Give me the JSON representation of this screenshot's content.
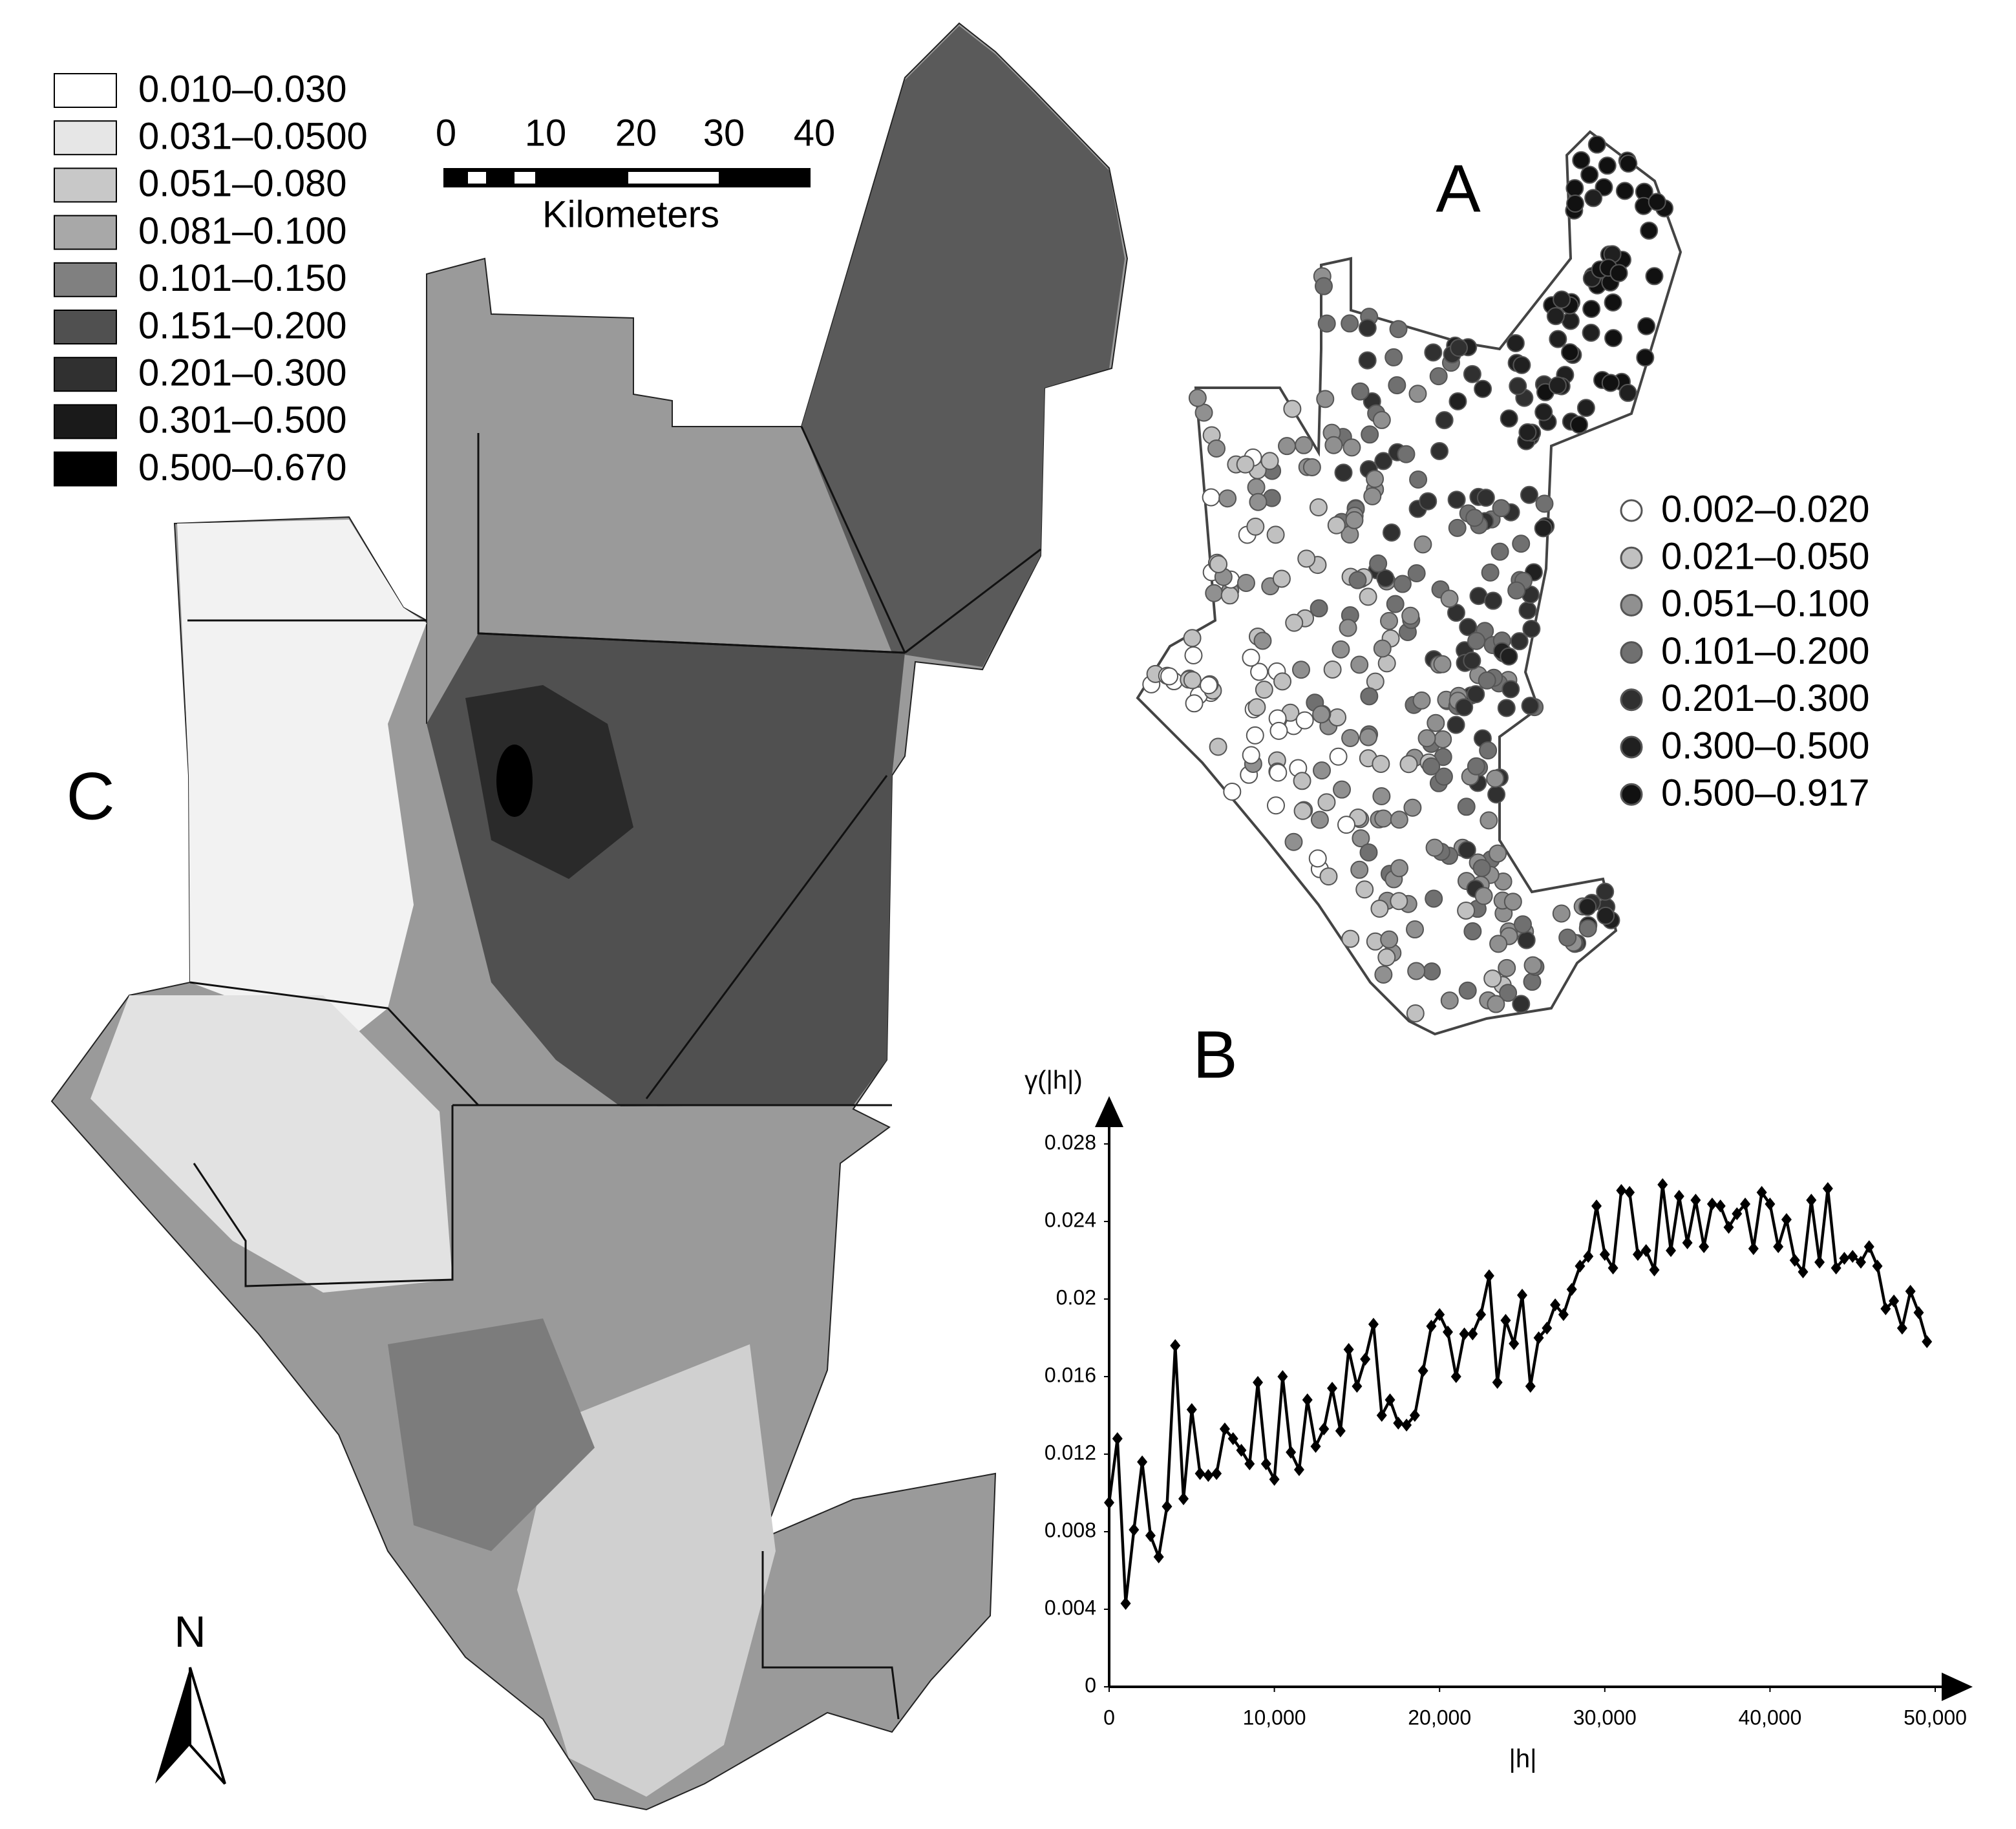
{
  "map_c": {
    "label": "C",
    "legend": [
      {
        "label": "0.010–0.030",
        "color": "#ffffff"
      },
      {
        "label": "0.031–0.0500",
        "color": "#e6e6e6"
      },
      {
        "label": "0.051–0.080",
        "color": "#c8c8c8"
      },
      {
        "label": "0.081–0.100",
        "color": "#a8a8a8"
      },
      {
        "label": "0.101–0.150",
        "color": "#808080"
      },
      {
        "label": "0.151–0.200",
        "color": "#505050"
      },
      {
        "label": "0.201–0.300",
        "color": "#303030"
      },
      {
        "label": "0.301–0.500",
        "color": "#1a1a1a"
      },
      {
        "label": "0.500–0.670",
        "color": "#000000"
      }
    ],
    "scale_bar": {
      "ticks": [
        "0",
        "10",
        "20",
        "30",
        "40"
      ],
      "unit": "Kilometers"
    },
    "north": "N"
  },
  "map_a": {
    "label": "A",
    "legend": [
      {
        "label": "0.002–0.020",
        "color": "#ffffff"
      },
      {
        "label": "0.021–0.050",
        "color": "#c0c0c0"
      },
      {
        "label": "0.051–0.100",
        "color": "#909090"
      },
      {
        "label": "0.101–0.200",
        "color": "#707070"
      },
      {
        "label": "0.201–0.300",
        "color": "#303030"
      },
      {
        "label": "0.300–0.500",
        "color": "#202020"
      },
      {
        "label": "0.500–0.917",
        "color": "#111111"
      }
    ]
  },
  "chart_data": {
    "type": "line",
    "title": "B",
    "y_label": "γ(|h|)",
    "x_label": "|h|",
    "color": "#000000",
    "xlim": [
      0,
      50000
    ],
    "xticks": [
      0,
      {
        "value": 10000,
        "label": "10,000"
      },
      {
        "value": 20000,
        "label": "20,000"
      },
      {
        "value": 30000,
        "label": "30,000"
      },
      {
        "value": 40000,
        "label": "40,000"
      },
      {
        "value": 50000,
        "label": "50,000"
      }
    ],
    "ylim": [
      0,
      0.028
    ],
    "yticks": [
      0,
      0.004,
      0.008,
      0.012,
      0.016,
      0.02,
      0.024,
      0.028
    ],
    "x": [
      0,
      500,
      1000,
      1500,
      2000,
      2500,
      3000,
      3500,
      4000,
      4500,
      5000,
      5500,
      6000,
      6500,
      7000,
      7500,
      8000,
      8500,
      9000,
      9500,
      10000,
      10500,
      11000,
      11500,
      12000,
      12500,
      13000,
      13500,
      14000,
      14500,
      15000,
      15500,
      16000,
      16500,
      17000,
      17500,
      18000,
      18500,
      19000,
      19500,
      20000,
      20500,
      21000,
      21500,
      22000,
      22500,
      23000,
      23500,
      24000,
      24500,
      25000,
      25500,
      26000,
      26500,
      27000,
      27500,
      28000,
      28500,
      29000,
      29500,
      30000,
      30500,
      31000,
      31500,
      32000,
      32500,
      33000,
      33500,
      34000,
      34500,
      35000,
      35500,
      36000,
      36500,
      37000,
      37500,
      38000,
      38500,
      39000,
      39500,
      40000,
      40500,
      41000,
      41500,
      42000,
      42500,
      43000,
      43500,
      44000,
      44500,
      45000,
      45500,
      46000,
      46500,
      47000,
      47500,
      48000,
      48500,
      49000,
      49500
    ],
    "series": [
      {
        "name": "γ(|h|)",
        "color": "#000000",
        "values": [
          0.0095,
          0.0128,
          0.0043,
          0.0081,
          0.0116,
          0.0078,
          0.0067,
          0.0093,
          0.0176,
          0.0097,
          0.0143,
          0.011,
          0.0109,
          0.011,
          0.0133,
          0.0128,
          0.0122,
          0.0115,
          0.0157,
          0.0115,
          0.0107,
          0.016,
          0.0121,
          0.0112,
          0.0148,
          0.0124,
          0.0133,
          0.0154,
          0.0132,
          0.0174,
          0.0155,
          0.0169,
          0.0187,
          0.014,
          0.0148,
          0.0136,
          0.0135,
          0.014,
          0.0163,
          0.0186,
          0.0192,
          0.0183,
          0.016,
          0.0182,
          0.0182,
          0.0192,
          0.0212,
          0.0157,
          0.0189,
          0.0177,
          0.0202,
          0.0155,
          0.018,
          0.0185,
          0.0197,
          0.0192,
          0.0205,
          0.0217,
          0.0222,
          0.0248,
          0.0223,
          0.0216,
          0.0256,
          0.0255,
          0.0223,
          0.0225,
          0.0215,
          0.0259,
          0.0225,
          0.0253,
          0.0229,
          0.0251,
          0.0227,
          0.0249,
          0.0248,
          0.0237,
          0.0244,
          0.0249,
          0.0226,
          0.0255,
          0.0249,
          0.0227,
          0.0241,
          0.022,
          0.0214,
          0.0251,
          0.0219,
          0.0257,
          0.0216,
          0.0221,
          0.0222,
          0.0219,
          0.0227,
          0.0217,
          0.0195,
          0.0199,
          0.0185,
          0.0204,
          0.0193,
          0.0178
        ]
      }
    ]
  }
}
